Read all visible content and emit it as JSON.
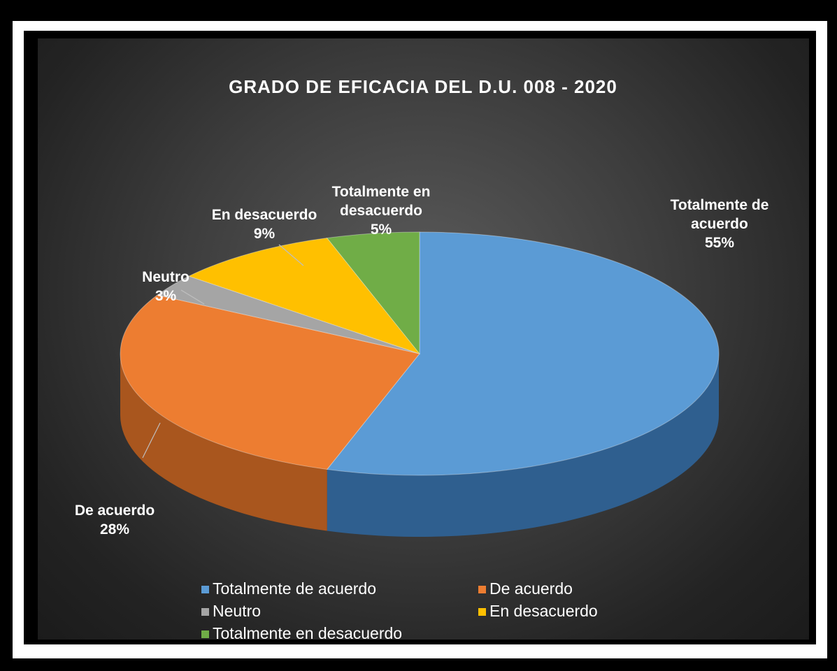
{
  "chart_data": {
    "type": "pie",
    "title": "GRADO DE EFICACIA DEL D.U. 008 - 2020",
    "categories": [
      "Totalmente de acuerdo",
      "De acuerdo",
      "Neutro",
      "En desacuerdo",
      "Totalmente en desacuerdo"
    ],
    "values": [
      55,
      28,
      3,
      9,
      5
    ],
    "unit": "%",
    "data_labels": [
      {
        "lines": [
          "Totalmente de",
          "acuerdo"
        ],
        "value": "55%"
      },
      {
        "lines": [
          "De acuerdo"
        ],
        "value": "28%"
      },
      {
        "lines": [
          "Neutro"
        ],
        "value": "3%"
      },
      {
        "lines": [
          "En desacuerdo"
        ],
        "value": "9%"
      },
      {
        "lines": [
          "Totalmente en",
          "desacuerdo"
        ],
        "value": "5%"
      }
    ],
    "colors": [
      "#5b9bd5",
      "#ed7d31",
      "#a5a5a5",
      "#ffc000",
      "#70ad47"
    ],
    "side_colors": [
      "#2f5f8f",
      "#a9561e",
      "#6e6e6e",
      "#b38600",
      "#4a7a2e"
    ],
    "style": "3d",
    "legend_position": "bottom",
    "background": "#333333"
  }
}
